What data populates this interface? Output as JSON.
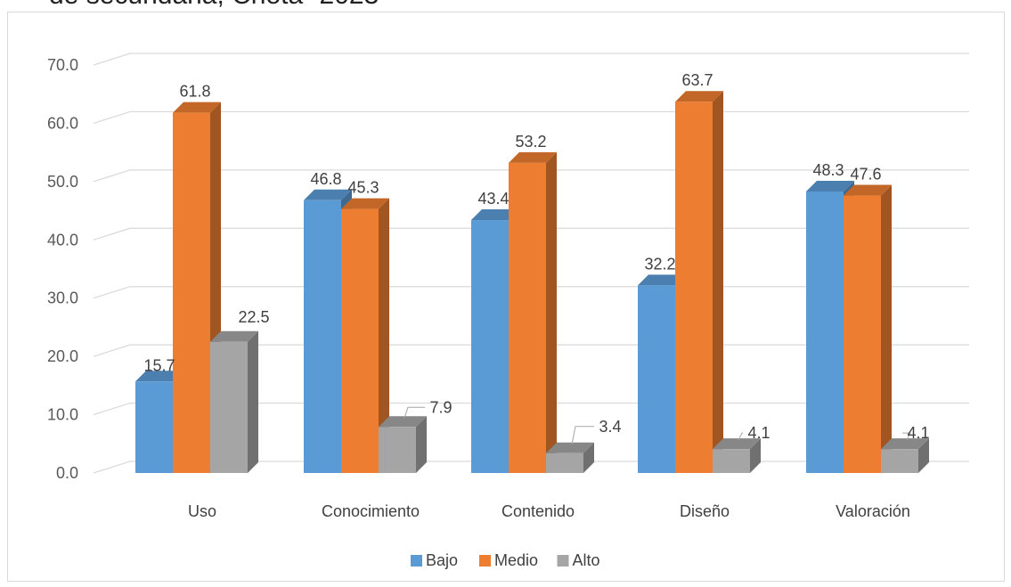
{
  "header": {
    "title_fragment": "de secundaria, Chota- 2023"
  },
  "chart_data": {
    "type": "bar",
    "categories": [
      "Uso",
      "Conocimiento",
      "Contenido",
      "Diseño",
      "Valoración"
    ],
    "series": [
      {
        "name": "Bajo",
        "values": [
          15.7,
          46.8,
          43.4,
          32.2,
          48.3
        ],
        "color": "#5b9bd5"
      },
      {
        "name": "Medio",
        "values": [
          61.8,
          45.3,
          53.2,
          63.7,
          47.6
        ],
        "color": "#ed7d31"
      },
      {
        "name": "Alto",
        "values": [
          22.5,
          7.9,
          3.4,
          4.1,
          4.1
        ],
        "color": "#a5a5a5"
      }
    ],
    "ylim": [
      0,
      70
    ],
    "yticks": [
      "0.0",
      "10.0",
      "20.0",
      "30.0",
      "40.0",
      "50.0",
      "60.0",
      "70.0"
    ],
    "grid": true,
    "legend": "bottom",
    "style": "3d-clustered-column"
  }
}
